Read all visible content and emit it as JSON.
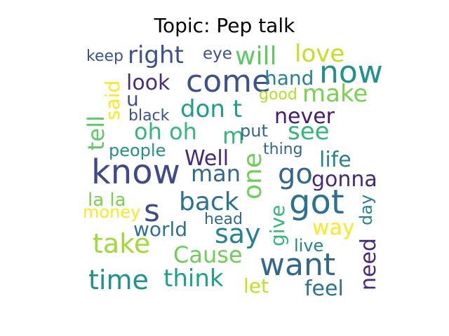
{
  "title": "Topic: Pep talk",
  "words": [
    {
      "text": "keep",
      "color": "#3b528b"
    },
    {
      "text": "right",
      "color": "#3b528b"
    },
    {
      "text": "eye",
      "color": "#3b528b"
    },
    {
      "text": "will",
      "color": "#5ec962"
    },
    {
      "text": "love",
      "color": "#c2df23"
    },
    {
      "text": "now",
      "color": "#21918c"
    },
    {
      "text": "said",
      "color": "#fde725"
    },
    {
      "text": "look",
      "color": "#472d7b"
    },
    {
      "text": "come",
      "color": "#3b528b"
    },
    {
      "text": "hand",
      "color": "#26828e"
    },
    {
      "text": "good",
      "color": "#b5de2b"
    },
    {
      "text": "make",
      "color": "#7ad151"
    },
    {
      "text": "u",
      "color": "#3b528b"
    },
    {
      "text": "tell",
      "color": "#5ec962"
    },
    {
      "text": "black",
      "color": "#3b528b"
    },
    {
      "text": "don t",
      "color": "#1f9e89"
    },
    {
      "text": "never",
      "color": "#481a6c"
    },
    {
      "text": "oh oh",
      "color": "#35b779"
    },
    {
      "text": "m",
      "color": "#35b779"
    },
    {
      "text": "put",
      "color": "#31688e"
    },
    {
      "text": "see",
      "color": "#35b779"
    },
    {
      "text": "people",
      "color": "#21918c"
    },
    {
      "text": "thing",
      "color": "#31688e"
    },
    {
      "text": "Well",
      "color": "#482878"
    },
    {
      "text": "life",
      "color": "#26828e"
    },
    {
      "text": "know",
      "color": "#3e4a89"
    },
    {
      "text": "man",
      "color": "#31688e"
    },
    {
      "text": "one",
      "color": "#6ece58"
    },
    {
      "text": "go",
      "color": "#31688e"
    },
    {
      "text": "gonna",
      "color": "#482878"
    },
    {
      "text": "la la",
      "color": "#7ad151"
    },
    {
      "text": "s",
      "color": "#3e4a89"
    },
    {
      "text": "back",
      "color": "#2c728e"
    },
    {
      "text": "got",
      "color": "#2c728e"
    },
    {
      "text": "money",
      "color": "#fde725"
    },
    {
      "text": "head",
      "color": "#31688e"
    },
    {
      "text": "give",
      "color": "#35b779"
    },
    {
      "text": "day",
      "color": "#26828e"
    },
    {
      "text": "world",
      "color": "#2c728e"
    },
    {
      "text": "say",
      "color": "#26828e"
    },
    {
      "text": "way",
      "color": "#fde725"
    },
    {
      "text": "take",
      "color": "#a0da39"
    },
    {
      "text": "live",
      "color": "#26828e"
    },
    {
      "text": "need",
      "color": "#482878"
    },
    {
      "text": "Cause",
      "color": "#6ece58"
    },
    {
      "text": "want",
      "color": "#31688e"
    },
    {
      "text": "time",
      "color": "#21918c"
    },
    {
      "text": "think",
      "color": "#1fa187"
    },
    {
      "text": "let",
      "color": "#c2df23"
    },
    {
      "text": "feel",
      "color": "#2c728e"
    }
  ]
}
